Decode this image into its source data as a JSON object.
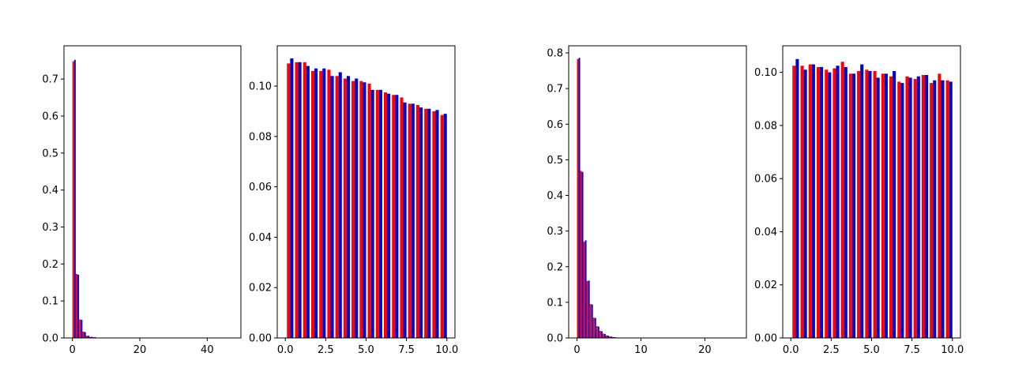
{
  "colors": {
    "series_a": "#ff0000",
    "series_b": "#0000cc",
    "axis": "#000000",
    "background": "#ffffff"
  },
  "chart_data": [
    {
      "type": "bar",
      "xlim": [
        -2.5,
        50
      ],
      "ylim": [
        0,
        0.79
      ],
      "xticks": [
        0,
        20,
        40
      ],
      "xtick_labels": [
        "0",
        "20",
        "40"
      ],
      "yticks": [
        0.0,
        0.1,
        0.2,
        0.3,
        0.4,
        0.5,
        0.6,
        0.7
      ],
      "ytick_labels": [
        "0.0",
        "0.1",
        "0.2",
        "0.3",
        "0.4",
        "0.5",
        "0.6",
        "0.7"
      ],
      "bar_width": 0.48,
      "series": [
        {
          "color_key": "series_a",
          "offset": 0,
          "x": [
            0,
            1,
            2,
            3,
            4,
            5,
            6,
            7,
            8
          ],
          "values": [
            0.748,
            0.173,
            0.05,
            0.017,
            0.006,
            0.003,
            0.002,
            0.001,
            0.0005
          ]
        },
        {
          "color_key": "series_b",
          "offset": 0.5,
          "x": [
            0,
            1,
            2,
            3,
            4,
            5,
            6,
            7,
            8
          ],
          "values": [
            0.752,
            0.171,
            0.049,
            0.016,
            0.006,
            0.003,
            0.002,
            0.001,
            0.0005
          ]
        }
      ]
    },
    {
      "type": "bar",
      "xlim": [
        -0.5,
        10.5
      ],
      "ylim": [
        0,
        0.116
      ],
      "xticks": [
        0,
        2.5,
        5,
        7.5,
        10
      ],
      "xtick_labels": [
        "0.0",
        "2.5",
        "5.0",
        "7.5",
        "10.0"
      ],
      "yticks": [
        0.0,
        0.02,
        0.04,
        0.06,
        0.08,
        0.1
      ],
      "ytick_labels": [
        "0.00",
        "0.02",
        "0.04",
        "0.06",
        "0.08",
        "0.10"
      ],
      "bar_width": 0.2,
      "series": [
        {
          "color_key": "series_a",
          "offset": 0,
          "x": [
            0.1,
            0.6,
            1.1,
            1.6,
            2.1,
            2.6,
            3.1,
            3.6,
            4.1,
            4.6,
            5.1,
            5.6,
            6.1,
            6.6,
            7.1,
            7.6,
            8.1,
            8.6,
            9.1,
            9.6
          ],
          "values": [
            0.109,
            0.1095,
            0.1095,
            0.106,
            0.106,
            0.1065,
            0.104,
            0.103,
            0.102,
            0.102,
            0.101,
            0.0985,
            0.0975,
            0.0965,
            0.0955,
            0.093,
            0.0925,
            0.091,
            0.09,
            0.0885
          ]
        },
        {
          "color_key": "series_b",
          "offset": 0,
          "x": [
            0.3,
            0.8,
            1.3,
            1.8,
            2.3,
            2.8,
            3.3,
            3.8,
            4.3,
            4.8,
            5.3,
            5.8,
            6.3,
            6.8,
            7.3,
            7.8,
            8.3,
            8.8,
            9.3,
            9.8
          ],
          "values": [
            0.111,
            0.1095,
            0.108,
            0.107,
            0.107,
            0.104,
            0.1055,
            0.104,
            0.103,
            0.1015,
            0.0985,
            0.0985,
            0.097,
            0.0965,
            0.0935,
            0.093,
            0.0915,
            0.091,
            0.0905,
            0.089
          ]
        }
      ]
    },
    {
      "type": "bar",
      "xlim": [
        -1.3,
        26.5
      ],
      "ylim": [
        0,
        0.82
      ],
      "xticks": [
        0,
        10,
        20
      ],
      "xtick_labels": [
        "0",
        "10",
        "20"
      ],
      "yticks": [
        0.0,
        0.1,
        0.2,
        0.3,
        0.4,
        0.5,
        0.6,
        0.7,
        0.8
      ],
      "ytick_labels": [
        "0.0",
        "0.1",
        "0.2",
        "0.3",
        "0.4",
        "0.5",
        "0.6",
        "0.7",
        "0.8"
      ],
      "bar_width": 0.24,
      "series": [
        {
          "color_key": "series_a",
          "offset": 0,
          "x": [
            0,
            0.5,
            1,
            1.5,
            2,
            2.5,
            3,
            3.5,
            4,
            4.5,
            5,
            5.5,
            6
          ],
          "values": [
            0.783,
            0.469,
            0.27,
            0.16,
            0.095,
            0.057,
            0.033,
            0.02,
            0.012,
            0.007,
            0.004,
            0.0025,
            0.0015
          ]
        },
        {
          "color_key": "series_b",
          "offset": 0.25,
          "x": [
            0,
            0.5,
            1,
            1.5,
            2,
            2.5,
            3,
            3.5,
            4,
            4.5,
            5,
            5.5,
            6
          ],
          "values": [
            0.786,
            0.466,
            0.274,
            0.161,
            0.094,
            0.056,
            0.032,
            0.019,
            0.011,
            0.0065,
            0.0038,
            0.0022,
            0.0013
          ]
        }
      ]
    },
    {
      "type": "bar",
      "xlim": [
        -0.5,
        10.5
      ],
      "ylim": [
        0,
        0.11
      ],
      "xticks": [
        0,
        2.5,
        5,
        7.5,
        10
      ],
      "xtick_labels": [
        "0.0",
        "2.5",
        "5.0",
        "7.5",
        "10.0"
      ],
      "yticks": [
        0.0,
        0.02,
        0.04,
        0.06,
        0.08,
        0.1
      ],
      "ytick_labels": [
        "0.00",
        "0.02",
        "0.04",
        "0.06",
        "0.08",
        "0.10"
      ],
      "bar_width": 0.2,
      "series": [
        {
          "color_key": "series_a",
          "offset": 0,
          "x": [
            0.1,
            0.6,
            1.1,
            1.6,
            2.1,
            2.6,
            3.1,
            3.6,
            4.1,
            4.6,
            5.1,
            5.6,
            6.1,
            6.6,
            7.1,
            7.6,
            8.1,
            8.6,
            9.1,
            9.6
          ],
          "values": [
            0.1025,
            0.1025,
            0.103,
            0.102,
            0.101,
            0.1015,
            0.104,
            0.0995,
            0.1005,
            0.101,
            0.1005,
            0.0995,
            0.0985,
            0.0965,
            0.0985,
            0.0975,
            0.099,
            0.096,
            0.0995,
            0.097
          ]
        },
        {
          "color_key": "series_b",
          "offset": 0,
          "x": [
            0.3,
            0.8,
            1.3,
            1.8,
            2.3,
            2.8,
            3.3,
            3.8,
            4.3,
            4.8,
            5.3,
            5.8,
            6.3,
            6.8,
            7.3,
            7.8,
            8.3,
            8.8,
            9.3,
            9.8
          ],
          "values": [
            0.105,
            0.101,
            0.103,
            0.102,
            0.1,
            0.1025,
            0.102,
            0.0995,
            0.103,
            0.1005,
            0.098,
            0.0995,
            0.1005,
            0.096,
            0.098,
            0.0985,
            0.099,
            0.097,
            0.097,
            0.0965
          ]
        }
      ]
    }
  ]
}
